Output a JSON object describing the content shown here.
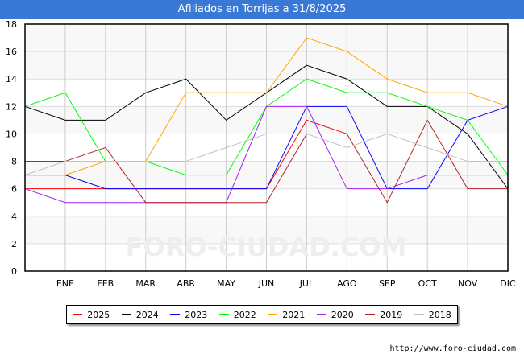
{
  "chart_data": {
    "type": "line",
    "title": "Afiliados en Torrijas a 31/8/2025",
    "categories": [
      "",
      "ENE",
      "FEB",
      "MAR",
      "ABR",
      "MAY",
      "JUN",
      "JUL",
      "AGO",
      "SEP",
      "OCT",
      "NOV",
      "DIC"
    ],
    "ylim": [
      0,
      18
    ],
    "yticks": [
      0,
      2,
      4,
      6,
      8,
      10,
      12,
      14,
      16,
      18
    ],
    "grid": true,
    "legend_position": "bottom",
    "series": [
      {
        "name": "2025",
        "color": "#ff0000",
        "values": [
          6,
          6,
          6,
          6,
          6,
          6,
          6,
          11,
          10,
          null,
          null,
          null,
          null
        ]
      },
      {
        "name": "2024",
        "color": "#000000",
        "values": [
          12,
          11,
          11,
          13,
          14,
          11,
          13,
          15,
          14,
          12,
          12,
          10,
          6
        ]
      },
      {
        "name": "2023",
        "color": "#0000ff",
        "values": [
          7,
          7,
          6,
          6,
          6,
          6,
          6,
          12,
          12,
          6,
          6,
          11,
          12
        ]
      },
      {
        "name": "2022",
        "color": "#00ff00",
        "values": [
          12,
          13,
          8,
          8,
          7,
          7,
          12,
          14,
          13,
          13,
          12,
          11,
          7
        ]
      },
      {
        "name": "2021",
        "color": "#ffa500",
        "values": [
          7,
          7,
          8,
          8,
          13,
          13,
          13,
          17,
          16,
          14,
          13,
          13,
          12
        ]
      },
      {
        "name": "2020",
        "color": "#a020f0",
        "values": [
          6,
          5,
          5,
          5,
          5,
          5,
          12,
          12,
          6,
          6,
          7,
          7,
          7
        ]
      },
      {
        "name": "2019",
        "color": "#b22222",
        "values": [
          8,
          8,
          9,
          5,
          5,
          5,
          5,
          10,
          10,
          5,
          11,
          6,
          6
        ]
      },
      {
        "name": "2018",
        "color": "#c0c0c0",
        "values": [
          7,
          8,
          8,
          8,
          8,
          9,
          10,
          10,
          9,
          10,
          9,
          8,
          8
        ]
      }
    ]
  },
  "watermark": "FORO-CIUDAD.COM",
  "source_url": "http://www.foro-ciudad.com"
}
